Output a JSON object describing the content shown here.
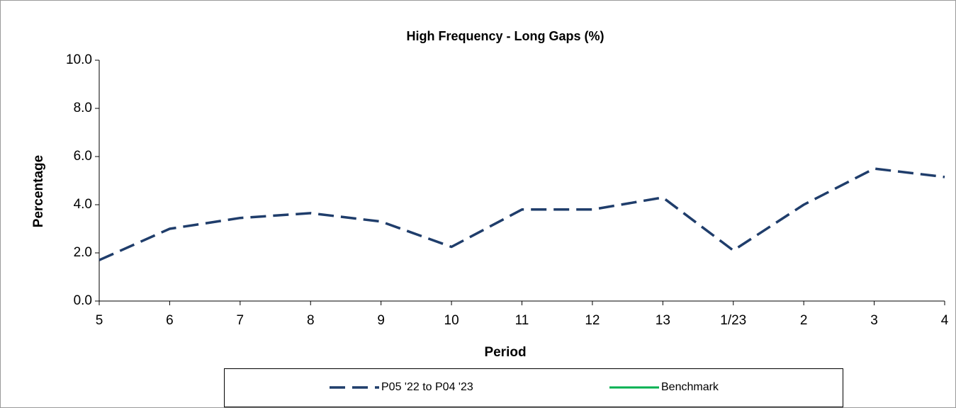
{
  "chart_data": {
    "type": "line",
    "title": "High Frequency - Long Gaps (%)",
    "x_label": "Period",
    "y_label": "Percentage",
    "categories": [
      "5",
      "6",
      "7",
      "8",
      "9",
      "10",
      "11",
      "12",
      "13",
      "1/23",
      "2",
      "3",
      "4"
    ],
    "series": [
      {
        "name": "P05 '22 to P04 '23",
        "color": "#1f3d6b",
        "values": [
          1.7,
          3.0,
          3.45,
          3.65,
          3.3,
          2.25,
          3.8,
          3.8,
          4.3,
          2.1,
          4.0,
          5.5,
          5.15
        ]
      },
      {
        "name": "Benchmark",
        "color": "#00b050",
        "values": [
          null,
          null,
          null,
          null,
          null,
          null,
          null,
          null,
          null,
          null,
          null,
          null,
          null
        ]
      }
    ],
    "ylim": [
      0,
      10
    ],
    "yticks": [
      {
        "value": 0,
        "label": "0.0"
      },
      {
        "value": 2,
        "label": "2.0"
      },
      {
        "value": 4,
        "label": "4.0"
      },
      {
        "value": 6,
        "label": "6.0"
      },
      {
        "value": 8,
        "label": "8.0"
      },
      {
        "value": 10,
        "label": "10.0"
      }
    ]
  }
}
